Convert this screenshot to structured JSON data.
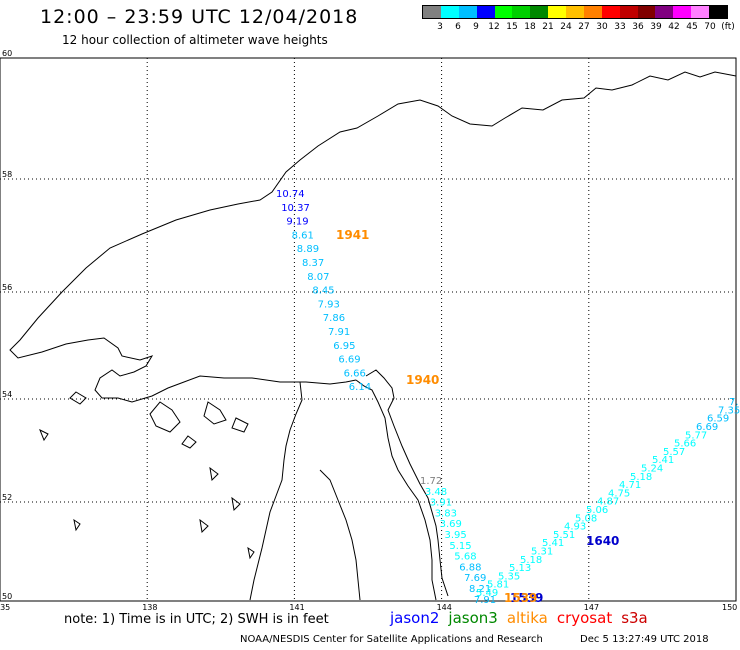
{
  "header": {
    "title": "12:00 – 23:59 UTC 12/04/2018",
    "subtitle": "12 hour collection of altimeter wave heights"
  },
  "legend": {
    "colors": [
      "#808080",
      "#00ffff",
      "#00bfff",
      "#0000ff",
      "#00ff00",
      "#00d000",
      "#008800",
      "#ffff00",
      "#ffc000",
      "#ff8000",
      "#ff0000",
      "#c00000",
      "#800000",
      "#800080",
      "#ff00ff",
      "#ff80ff",
      "#000000"
    ],
    "labels": [
      "3",
      "6",
      "9",
      "12",
      "15",
      "18",
      "21",
      "24",
      "27",
      "30",
      "33",
      "36",
      "39",
      "42",
      "45",
      "70",
      "(ft)"
    ]
  },
  "map": {
    "lat_ticks": [
      "60",
      "58",
      "56",
      "54",
      "52",
      "50"
    ],
    "lon_ticks": [
      "135",
      "138",
      "141",
      "144",
      "147",
      "150"
    ],
    "lat_range": [
      50,
      60
    ],
    "lon_range": [
      135,
      150
    ],
    "pass_labels": [
      {
        "text": "1941",
        "color": "#ff8c00"
      },
      {
        "text": "1940",
        "color": "#ff8c00"
      },
      {
        "text": "1640",
        "color": "#0000cc"
      },
      {
        "text": "1539",
        "color": "#0000cc"
      },
      {
        "text": "1539",
        "color": "#ff8c00"
      }
    ],
    "track_north": [
      {
        "v": "10.74",
        "c": "#0000ff"
      },
      {
        "v": "10.37",
        "c": "#0000ff"
      },
      {
        "v": "9.19",
        "c": "#0000ff"
      },
      {
        "v": "8.61",
        "c": "#00bfff"
      },
      {
        "v": "8.89",
        "c": "#00bfff"
      },
      {
        "v": "8.37",
        "c": "#00bfff"
      },
      {
        "v": "8.07",
        "c": "#00bfff"
      },
      {
        "v": "8.45",
        "c": "#00bfff"
      },
      {
        "v": "7.93",
        "c": "#00bfff"
      },
      {
        "v": "7.86",
        "c": "#00bfff"
      },
      {
        "v": "7.91",
        "c": "#00bfff"
      },
      {
        "v": "6.95",
        "c": "#00bfff"
      },
      {
        "v": "6.69",
        "c": "#00bfff"
      },
      {
        "v": "6.66",
        "c": "#00bfff"
      },
      {
        "v": "6.14",
        "c": "#00bfff"
      }
    ],
    "track_south": [
      {
        "v": "1.72",
        "c": "#808080"
      },
      {
        "v": "3.48",
        "c": "#00ffff"
      },
      {
        "v": "3.91",
        "c": "#00ffff"
      },
      {
        "v": "3.83",
        "c": "#00ffff"
      },
      {
        "v": "3.69",
        "c": "#00ffff"
      },
      {
        "v": "3.95",
        "c": "#00ffff"
      },
      {
        "v": "5.15",
        "c": "#00ffff"
      },
      {
        "v": "5.68",
        "c": "#00ffff"
      },
      {
        "v": "6.88",
        "c": "#00bfff"
      },
      {
        "v": "7.69",
        "c": "#00bfff"
      },
      {
        "v": "8.21",
        "c": "#00bfff"
      },
      {
        "v": "7.91",
        "c": "#00bfff"
      }
    ],
    "track_east": [
      {
        "v": "5.49",
        "c": "#00ffff"
      },
      {
        "v": "5.81",
        "c": "#00ffff"
      },
      {
        "v": "5.35",
        "c": "#00ffff"
      },
      {
        "v": "5.13",
        "c": "#00ffff"
      },
      {
        "v": "5.18",
        "c": "#00ffff"
      },
      {
        "v": "5.31",
        "c": "#00ffff"
      },
      {
        "v": "5.41",
        "c": "#00ffff"
      },
      {
        "v": "5.51",
        "c": "#00ffff"
      },
      {
        "v": "4.93",
        "c": "#00ffff"
      },
      {
        "v": "5.08",
        "c": "#00ffff"
      },
      {
        "v": "5.06",
        "c": "#00ffff"
      },
      {
        "v": "4.87",
        "c": "#00ffff"
      },
      {
        "v": "4.75",
        "c": "#00ffff"
      },
      {
        "v": "4.71",
        "c": "#00ffff"
      },
      {
        "v": "5.18",
        "c": "#00ffff"
      },
      {
        "v": "5.24",
        "c": "#00ffff"
      },
      {
        "v": "5.41",
        "c": "#00ffff"
      },
      {
        "v": "5.57",
        "c": "#00ffff"
      },
      {
        "v": "5.66",
        "c": "#00ffff"
      },
      {
        "v": "5.77",
        "c": "#00ffff"
      },
      {
        "v": "6.69",
        "c": "#00bfff"
      },
      {
        "v": "6.59",
        "c": "#00bfff"
      },
      {
        "v": "7.35",
        "c": "#00bfff"
      },
      {
        "v": "7.",
        "c": "#00bfff"
      }
    ]
  },
  "footer": {
    "note": "note: 1) Time is in UTC; 2) SWH is in feet",
    "satellites": [
      {
        "name": "jason2",
        "color": "#0000ff"
      },
      {
        "name": "jason3",
        "color": "#008800"
      },
      {
        "name": "altika",
        "color": "#ff8c00"
      },
      {
        "name": "cryosat",
        "color": "#ff0000"
      },
      {
        "name": "s3a",
        "color": "#cc0000"
      }
    ],
    "credit": "NOAA/NESDIS Center for Satellite Applications and Research",
    "timestamp": "Dec  5 13:27:49 UTC 2018"
  }
}
